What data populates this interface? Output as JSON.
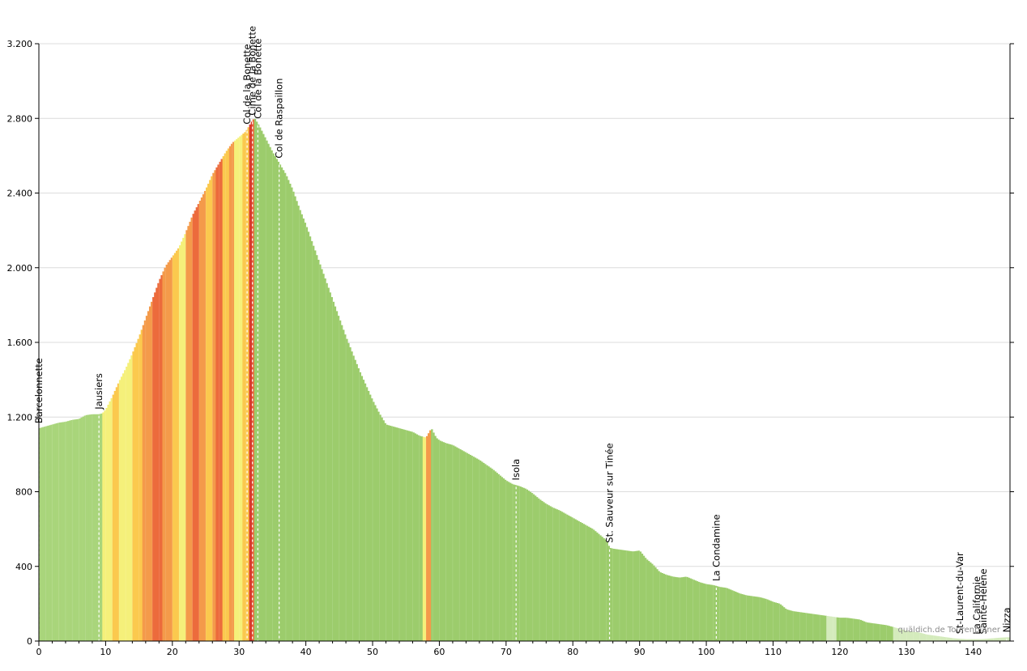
{
  "chart_data": {
    "type": "area",
    "title": "",
    "xlabel": "",
    "ylabel": "",
    "xlim": [
      0,
      145.5
    ],
    "ylim": [
      0,
      3200
    ],
    "x_ticks": [
      0,
      10,
      20,
      30,
      40,
      50,
      60,
      70,
      80,
      90,
      100,
      110,
      120,
      130,
      140
    ],
    "x_tick_labels": [
      "0",
      "10",
      "20",
      "30",
      "40",
      "50",
      "60",
      "70",
      "80",
      "90",
      "100",
      "110",
      "120",
      "130",
      "140"
    ],
    "y_ticks": [
      0,
      400,
      800,
      1200,
      1600,
      2000,
      2400,
      2800,
      3200
    ],
    "y_tick_labels": [
      "0",
      "400",
      "800",
      "1.200",
      "1.600",
      "2.000",
      "2.400",
      "2.800",
      "3.200"
    ],
    "grid": "horizontal",
    "credit": "quäldich.de Tourenplaner",
    "gradient_colors": {
      "descent": "#9ccc6c",
      "flat": "#a9d57b",
      "light": "#f5f07a",
      "moderate": "#fbc94e",
      "steep": "#f49a4a",
      "very_steep": "#ec6b3c",
      "extreme": "#d93a2b"
    },
    "profile": {
      "x": [
        0,
        0.5,
        1,
        2,
        3,
        4,
        5,
        6,
        7,
        8,
        9,
        9.5,
        10,
        11,
        12,
        13,
        14,
        15,
        16,
        17,
        18,
        19,
        20,
        21,
        22,
        23,
        24,
        25,
        26,
        27,
        28,
        29,
        30,
        30.5,
        31,
        31.5,
        32,
        32.3,
        33,
        34,
        35,
        36,
        37,
        38,
        39,
        40,
        41,
        42,
        43,
        44,
        45,
        46,
        47,
        48,
        49,
        50,
        51,
        52,
        53,
        54,
        55,
        56,
        57,
        58,
        58.8,
        59.5,
        60,
        61,
        62,
        63,
        64,
        65,
        66,
        67,
        68,
        69,
        70,
        71,
        72,
        73,
        74,
        75,
        76,
        77,
        78,
        79,
        80,
        81,
        82,
        83,
        84,
        85,
        85.5,
        86,
        87,
        88,
        89,
        90,
        91,
        92,
        93,
        94,
        95,
        96,
        97,
        98,
        99,
        100,
        101,
        102,
        103,
        104,
        105,
        106,
        107,
        108,
        109,
        110,
        111,
        112,
        113,
        114,
        115,
        116,
        117,
        118,
        119,
        120,
        121,
        122,
        123,
        124,
        125,
        126,
        127,
        128,
        129,
        130,
        131,
        132,
        133,
        134,
        135,
        136,
        137,
        138,
        139,
        140,
        141,
        142,
        143,
        144,
        145
      ],
      "elevation": [
        1140,
        1145,
        1150,
        1160,
        1170,
        1175,
        1185,
        1190,
        1210,
        1215,
        1215,
        1220,
        1240,
        1310,
        1390,
        1460,
        1540,
        1630,
        1730,
        1830,
        1930,
        2010,
        2060,
        2110,
        2190,
        2280,
        2350,
        2420,
        2500,
        2560,
        2620,
        2670,
        2700,
        2715,
        2730,
        2760,
        2790,
        2802,
        2760,
        2690,
        2620,
        2560,
        2500,
        2420,
        2320,
        2230,
        2130,
        2030,
        1930,
        1830,
        1730,
        1630,
        1540,
        1450,
        1370,
        1290,
        1220,
        1160,
        1150,
        1140,
        1130,
        1120,
        1100,
        1090,
        1140,
        1090,
        1075,
        1060,
        1050,
        1030,
        1010,
        990,
        970,
        945,
        920,
        890,
        860,
        840,
        830,
        815,
        790,
        760,
        735,
        715,
        700,
        680,
        660,
        640,
        620,
        600,
        570,
        540,
        500,
        495,
        490,
        485,
        480,
        485,
        440,
        410,
        370,
        355,
        345,
        340,
        345,
        330,
        315,
        305,
        300,
        290,
        285,
        270,
        255,
        245,
        240,
        235,
        225,
        210,
        200,
        170,
        160,
        155,
        150,
        145,
        140,
        135,
        130,
        125,
        125,
        120,
        115,
        100,
        95,
        90,
        85,
        75,
        65,
        55,
        50,
        45,
        35,
        30,
        25,
        20,
        15,
        12,
        10,
        10,
        10,
        12,
        15,
        18,
        20
      ]
    },
    "gradient_segments": [
      {
        "from": 0,
        "to": 9.5,
        "class": "flat"
      },
      {
        "from": 9.5,
        "to": 11,
        "class": "light"
      },
      {
        "from": 11,
        "to": 12,
        "class": "moderate"
      },
      {
        "from": 12,
        "to": 14,
        "class": "light"
      },
      {
        "from": 14,
        "to": 15.5,
        "class": "moderate"
      },
      {
        "from": 15.5,
        "to": 17,
        "class": "steep"
      },
      {
        "from": 17,
        "to": 18.5,
        "class": "very_steep"
      },
      {
        "from": 18.5,
        "to": 20,
        "class": "steep"
      },
      {
        "from": 20,
        "to": 21,
        "class": "moderate"
      },
      {
        "from": 21,
        "to": 22,
        "class": "light"
      },
      {
        "from": 22,
        "to": 23,
        "class": "steep"
      },
      {
        "from": 23,
        "to": 24,
        "class": "very_steep"
      },
      {
        "from": 24,
        "to": 25,
        "class": "steep"
      },
      {
        "from": 25,
        "to": 26,
        "class": "moderate"
      },
      {
        "from": 26,
        "to": 26.5,
        "class": "steep"
      },
      {
        "from": 26.5,
        "to": 27.5,
        "class": "very_steep"
      },
      {
        "from": 27.5,
        "to": 28.5,
        "class": "moderate"
      },
      {
        "from": 28.5,
        "to": 29.3,
        "class": "steep"
      },
      {
        "from": 29.3,
        "to": 30.5,
        "class": "light"
      },
      {
        "from": 30.5,
        "to": 31.5,
        "class": "moderate"
      },
      {
        "from": 31.5,
        "to": 32,
        "class": "extreme"
      },
      {
        "from": 32,
        "to": 32.3,
        "class": "very_steep"
      },
      {
        "from": 32.3,
        "to": 57.5,
        "class": "descent"
      },
      {
        "from": 57.5,
        "to": 58,
        "class": "light"
      },
      {
        "from": 58,
        "to": 58.8,
        "class": "steep"
      },
      {
        "from": 58.8,
        "to": 118,
        "class": "descent"
      },
      {
        "from": 118,
        "to": 119.5,
        "class": "light_green"
      },
      {
        "from": 119.5,
        "to": 128,
        "class": "descent"
      },
      {
        "from": 128,
        "to": 145.5,
        "class": "light_green"
      }
    ],
    "waypoints": [
      {
        "name": "Barcelonnette",
        "x": 0
      },
      {
        "name": "Jausiers",
        "x": 9
      },
      {
        "name": "Col de la Bonette",
        "x": 31.2
      },
      {
        "name": "Cime de la Bonette",
        "x": 32
      },
      {
        "name": "Col de la Bonette",
        "x": 32.8
      },
      {
        "name": "Col de Raspaillon",
        "x": 36
      },
      {
        "name": "Isola",
        "x": 71.5
      },
      {
        "name": "St. Sauveur sur Tinée",
        "x": 85.5
      },
      {
        "name": "La Condamine",
        "x": 101.5
      },
      {
        "name": "St-Laurent-du-Var",
        "x": 138
      },
      {
        "name": "La Californie",
        "x": 140.5
      },
      {
        "name": "Sainte-Hélène",
        "x": 141.5
      },
      {
        "name": "Nizza",
        "x": 145
      }
    ]
  }
}
